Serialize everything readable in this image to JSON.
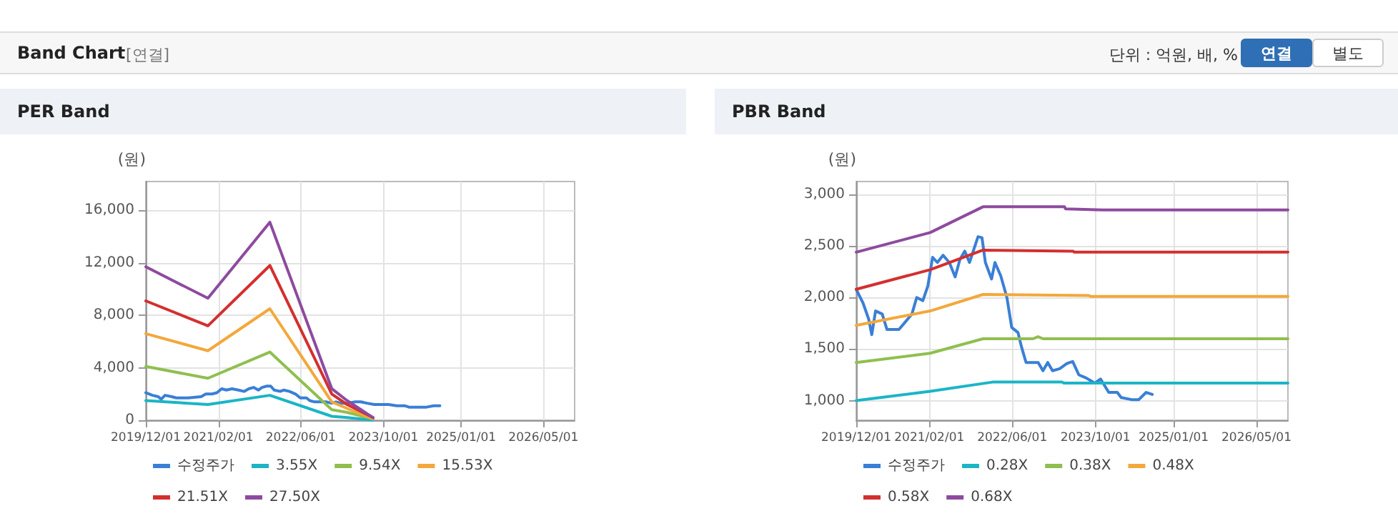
{
  "chart_data": [
    {
      "type": "line",
      "title": "PER Band",
      "ylabel": "(원)",
      "annotations": [
        "Band Chart",
        "[연결]",
        "단위 : 억원, 배, %",
        "연결",
        "별도"
      ],
      "xlim": [
        "2019-12-01",
        "2026-11-01"
      ],
      "xticks": [
        {
          "value": "2019-12-01",
          "label": "2019/12/01"
        },
        {
          "value": "2021-02-01",
          "label": "2021/02/01"
        },
        {
          "value": "2022-06-01",
          "label": "2022/06/01"
        },
        {
          "value": "2023-10-01",
          "label": "2023/10/01"
        },
        {
          "value": "2025-01-01",
          "label": "2025/01/01"
        },
        {
          "value": "2026-05-01",
          "label": "2026/05/01"
        }
      ],
      "ylim": [
        0,
        18200
      ],
      "yticks": [
        0,
        {
          "value": 4000,
          "label": "4,000"
        },
        {
          "value": 8000,
          "label": "8,000"
        },
        {
          "value": 12000,
          "label": "12,000"
        },
        {
          "value": 16000,
          "label": "16,000"
        }
      ],
      "grid": true,
      "legend": "bottom",
      "series": [
        {
          "name": "수정주가",
          "color": "#3a7fd5",
          "x": [
            "2019-12-01",
            "2020-01-09",
            "2020-02-12",
            "2020-03-01",
            "2020-03-23",
            "2020-05-01",
            "2020-05-29",
            "2020-08-07",
            "2020-10-22",
            "2020-11-19",
            "2020-12-25",
            "2021-01-23",
            "2021-02-20",
            "2021-03-20",
            "2021-04-22",
            "2021-05-29",
            "2021-07-02",
            "2021-07-30",
            "2021-08-27",
            "2021-09-24",
            "2021-10-16",
            "2021-11-13",
            "2021-12-06",
            "2021-12-26",
            "2022-01-31",
            "2022-02-20",
            "2022-03-26",
            "2022-05-01",
            "2022-05-29",
            "2022-07-05",
            "2022-07-24",
            "2022-08-21",
            "2022-10-31",
            "2022-11-28",
            "2022-12-26",
            "2023-01-23",
            "2023-03-06",
            "2023-04-17",
            "2023-05-21",
            "2023-06-26",
            "2023-08-08",
            "2023-09-27",
            "2023-10-31",
            "2023-12-18",
            "2024-02-06",
            "2024-02-29",
            "2024-04-30",
            "2024-06-11",
            "2024-07-24",
            "2024-08-29"
          ],
          "values": [
            2100,
            1900,
            1800,
            1600,
            1900,
            1800,
            1700,
            1700,
            1800,
            2000,
            2000,
            2100,
            2400,
            2300,
            2400,
            2300,
            2200,
            2400,
            2500,
            2300,
            2500,
            2600,
            2600,
            2300,
            2200,
            2300,
            2200,
            2000,
            1700,
            1700,
            1500,
            1400,
            1400,
            1300,
            1400,
            1300,
            1300,
            1400,
            1400,
            1300,
            1200,
            1200,
            1200,
            1100,
            1100,
            1000,
            1000,
            1000,
            1100,
            1100
          ]
        },
        {
          "name": "3.55X",
          "color": "#1bb5c6",
          "x": [
            "2019-12-01",
            "2020-12-01",
            "2021-12-01",
            "2022-12-01",
            "2023-03-01",
            "2023-08-01"
          ],
          "values": [
            1500,
            1200,
            1900,
            300,
            200,
            0
          ]
        },
        {
          "name": "9.54X",
          "color": "#8fbf4f",
          "x": [
            "2019-12-01",
            "2020-12-01",
            "2021-12-01",
            "2022-12-01",
            "2023-03-01",
            "2023-08-01"
          ],
          "values": [
            4100,
            3200,
            5200,
            800,
            600,
            100
          ]
        },
        {
          "name": "15.53X",
          "color": "#f3a83b",
          "x": [
            "2019-12-01",
            "2020-12-01",
            "2021-12-01",
            "2022-12-01",
            "2023-03-01",
            "2023-08-01"
          ],
          "values": [
            6600,
            5300,
            8500,
            1400,
            900,
            100
          ]
        },
        {
          "name": "21.51X",
          "color": "#d32f2f",
          "x": [
            "2019-12-01",
            "2020-12-01",
            "2021-12-01",
            "2022-12-01",
            "2023-03-01",
            "2023-08-01"
          ],
          "values": [
            9100,
            7200,
            11800,
            2000,
            1200,
            200
          ]
        },
        {
          "name": "27.50X",
          "color": "#8e4a9e",
          "x": [
            "2019-12-01",
            "2020-12-01",
            "2021-12-01",
            "2022-12-01",
            "2023-03-01",
            "2023-08-01"
          ],
          "values": [
            11700,
            9300,
            15100,
            2400,
            1500,
            200
          ]
        }
      ]
    },
    {
      "type": "line",
      "title": "PBR Band",
      "ylabel": "(원)",
      "xlim": [
        "2019-12-01",
        "2026-11-01"
      ],
      "xticks": [
        {
          "value": "2019-12-01",
          "label": "2019/12/01"
        },
        {
          "value": "2021-02-01",
          "label": "2021/02/01"
        },
        {
          "value": "2022-06-01",
          "label": "2022/06/01"
        },
        {
          "value": "2023-10-01",
          "label": "2023/10/01"
        },
        {
          "value": "2025-01-01",
          "label": "2025/01/01"
        },
        {
          "value": "2026-05-01",
          "label": "2026/05/01"
        }
      ],
      "ylim": [
        810,
        3125
      ],
      "yticks": [
        {
          "value": 1000,
          "label": "1,000"
        },
        {
          "value": 1500,
          "label": "1,500"
        },
        {
          "value": 2000,
          "label": "2,000"
        },
        {
          "value": 2500,
          "label": "2,500"
        },
        {
          "value": 3000,
          "label": "3,000"
        }
      ],
      "grid": true,
      "legend": "bottom",
      "series": [
        {
          "name": "수정주가",
          "color": "#3a7fd5",
          "x": [
            "2019-12-01",
            "2020-01-09",
            "2020-02-12",
            "2020-03-01",
            "2020-03-23",
            "2020-05-01",
            "2020-05-29",
            "2020-08-07",
            "2020-10-22",
            "2020-11-19",
            "2020-12-25",
            "2021-01-23",
            "2021-02-20",
            "2021-03-20",
            "2021-04-22",
            "2021-05-29",
            "2021-07-02",
            "2021-07-30",
            "2021-08-27",
            "2021-09-24",
            "2021-10-16",
            "2021-11-13",
            "2021-12-06",
            "2021-12-26",
            "2022-01-31",
            "2022-02-20",
            "2022-03-26",
            "2022-05-01",
            "2022-05-29",
            "2022-07-05",
            "2022-07-24",
            "2022-08-21",
            "2022-10-31",
            "2022-11-28",
            "2022-12-26",
            "2023-01-23",
            "2023-03-06",
            "2023-04-17",
            "2023-05-21",
            "2023-06-26",
            "2023-08-08",
            "2023-09-27",
            "2023-10-31",
            "2023-12-18",
            "2024-02-06",
            "2024-02-29",
            "2024-04-30",
            "2024-06-11",
            "2024-07-24",
            "2024-08-29"
          ],
          "values": [
            2080,
            1950,
            1790,
            1640,
            1870,
            1840,
            1690,
            1690,
            1840,
            2000,
            1970,
            2110,
            2390,
            2340,
            2410,
            2340,
            2200,
            2370,
            2450,
            2340,
            2450,
            2590,
            2580,
            2340,
            2180,
            2340,
            2210,
            2000,
            1710,
            1660,
            1530,
            1370,
            1370,
            1290,
            1370,
            1290,
            1310,
            1360,
            1380,
            1250,
            1220,
            1170,
            1210,
            1080,
            1080,
            1030,
            1010,
            1010,
            1080,
            1060
          ]
        },
        {
          "name": "0.28X",
          "color": "#1bb5c6",
          "x": [
            "2019-12-01",
            "2021-02-06",
            "2022-02-06",
            "2023-03-20",
            "2023-03-30",
            "2026-11-01"
          ],
          "values": [
            1000,
            1090,
            1180,
            1180,
            1170,
            1170
          ]
        },
        {
          "name": "0.38X",
          "color": "#8fbf4f",
          "x": [
            "2019-12-01",
            "2021-02-06",
            "2021-12-12",
            "2022-10-01",
            "2022-10-30",
            "2022-11-28",
            "2026-11-01"
          ],
          "values": [
            1370,
            1460,
            1600,
            1600,
            1620,
            1600,
            1600
          ]
        },
        {
          "name": "0.48X",
          "color": "#f3a83b",
          "x": [
            "2019-12-01",
            "2021-02-06",
            "2021-12-12",
            "2023-08-22",
            "2023-09-05",
            "2026-11-01"
          ],
          "values": [
            1730,
            1870,
            2030,
            2020,
            2010,
            2010
          ]
        },
        {
          "name": "0.58X",
          "color": "#d32f2f",
          "x": [
            "2019-12-01",
            "2021-02-06",
            "2021-12-12",
            "2023-05-24",
            "2023-05-30",
            "2026-11-01"
          ],
          "values": [
            2080,
            2270,
            2460,
            2450,
            2440,
            2440
          ]
        },
        {
          "name": "0.68X",
          "color": "#8e4a9e",
          "x": [
            "2019-12-01",
            "2021-02-06",
            "2021-12-12",
            "2023-04-03",
            "2023-04-09",
            "2023-11-14",
            "2026-11-01"
          ],
          "values": [
            2440,
            2630,
            2880,
            2880,
            2860,
            2850,
            2850
          ]
        }
      ]
    }
  ]
}
